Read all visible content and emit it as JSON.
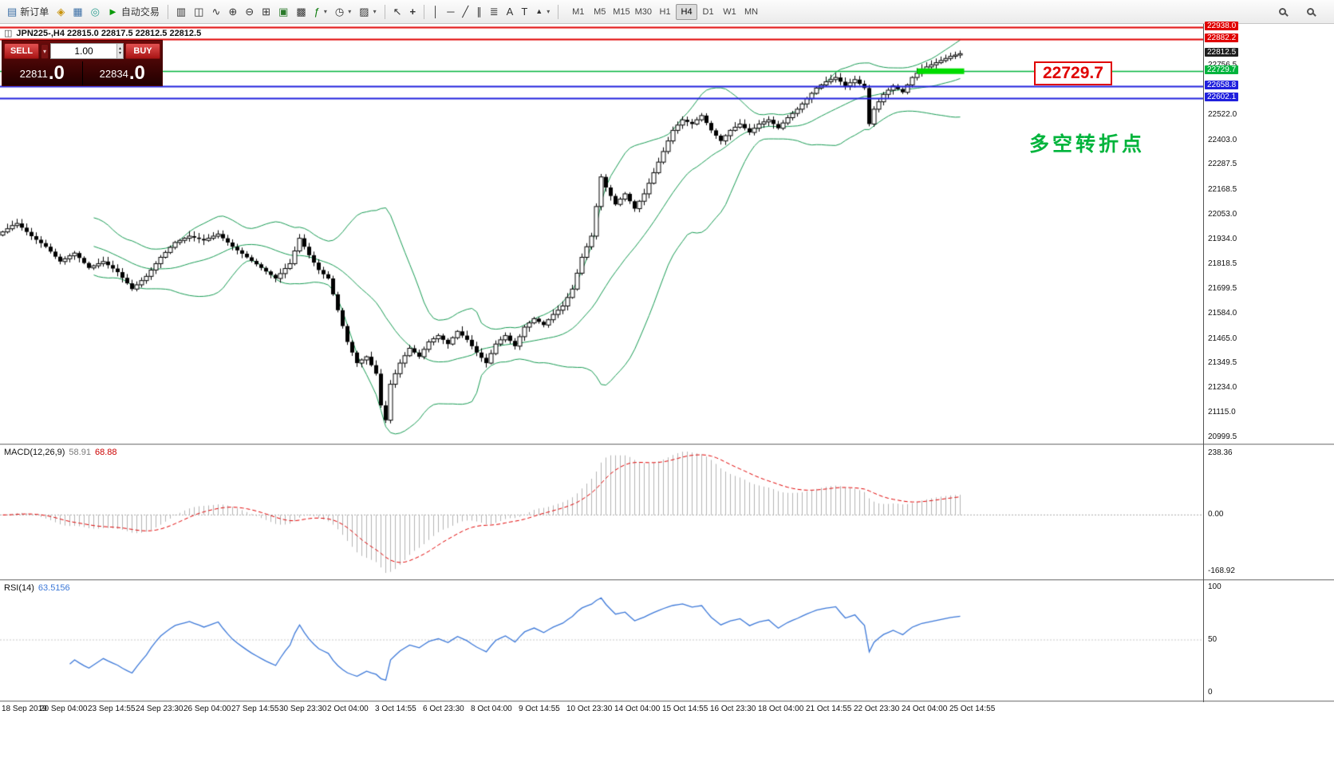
{
  "toolbar": {
    "new_order_label": "新订单",
    "autotrading_label": "自动交易",
    "timeframes": [
      "M1",
      "M5",
      "M15",
      "M30",
      "H1",
      "H4",
      "D1",
      "W1",
      "MN"
    ],
    "active_timeframe": "H4",
    "icons": {
      "new_order": "▤",
      "market": "◈",
      "terminal": "▦",
      "tester": "◎",
      "play": "►",
      "bars": "▥",
      "candles": "◫",
      "line_chart": "∿",
      "zoom_in": "⊕",
      "zoom_out": "⊖",
      "tile": "⊞",
      "window_a": "▣",
      "window_b": "▩",
      "indicators": "ƒ",
      "periods": "◷",
      "templates": "▨",
      "dropdown": "▾",
      "cursor": "↖",
      "crosshair": "+",
      "vline": "│",
      "hline": "─",
      "trendline": "╱",
      "channel": "∥",
      "fibonacci": "≣",
      "text": "A",
      "label": "T",
      "shapes": "▲"
    }
  },
  "chart": {
    "info": "JPN225-,H4  22815.0 22817.5 22812.5 22812.5",
    "annotation": "多空转折点",
    "callout": "22729.7",
    "levels": [
      {
        "price": 22938.0,
        "label": "22938.0",
        "color": "#e00000",
        "width": 2
      },
      {
        "price": 22882.2,
        "label": "22882.2",
        "color": "#e00000",
        "width": 2
      },
      {
        "price": 22812.5,
        "label": "22812.5",
        "color": "#1e1e1e",
        "width": 1,
        "current": true
      },
      {
        "price": 22729.7,
        "label": "22729.7",
        "color": "#00b43c",
        "width": 1.4
      },
      {
        "price": 22658.8,
        "label": "22658.8",
        "color": "#2020dd",
        "width": 2
      },
      {
        "price": 22602.1,
        "label": "22602.1",
        "color": "#2020dd",
        "width": 2
      }
    ],
    "highlight_segment": {
      "price": 22729.7,
      "from_candle": 191,
      "to_candle": 200,
      "color": "#00dc00"
    },
    "scale_labels": [
      "22756.5",
      "22522.0",
      "22403.0",
      "22287.5",
      "22168.5",
      "22053.0",
      "21934.0",
      "21818.5",
      "21699.5",
      "21584.0",
      "21465.0",
      "21349.5",
      "21234.0",
      "21115.0",
      "20999.5"
    ]
  },
  "trade_panel": {
    "sell_label": "SELL",
    "buy_label": "BUY",
    "lot": "1.00",
    "dropdown_glyph": "▾",
    "spinner_up": "▴",
    "spinner_down": "▾",
    "sell_price": "22811",
    "sell_pips": ".0",
    "buy_price": "22834",
    "buy_pips": ".0"
  },
  "macd_panel": {
    "title": "MACD(12,26,9)",
    "value_main": "58.91",
    "value_signal": "68.88",
    "scale": [
      "238.36",
      "0.00",
      "-168.92"
    ]
  },
  "rsi_panel": {
    "title": "RSI(14)",
    "value": "63.5156",
    "scale": [
      "100",
      "50",
      "0"
    ]
  },
  "time_axis": {
    "labels": [
      "18 Sep 2019",
      "20 Sep 04:00",
      "23 Sep 14:55",
      "24 Sep 23:30",
      "26 Sep 04:00",
      "27 Sep 14:55",
      "30 Sep 23:30",
      "2 Oct 04:00",
      "3 Oct 14:55",
      "6 Oct 23:30",
      "8 Oct 04:00",
      "9 Oct 14:55",
      "10 Oct 23:30",
      "14 Oct 04:00",
      "15 Oct 14:55",
      "16 Oct 23:30",
      "18 Oct 04:00",
      "21 Oct 14:55",
      "22 Oct 23:30",
      "24 Oct 04:00",
      "25 Oct 14:55"
    ]
  },
  "chart_data": {
    "type": "candlestick-with-indicators",
    "symbol": "JPN225-",
    "timeframe": "H4",
    "ohlc_readout": {
      "open": 22815.0,
      "high": 22817.5,
      "low": 22812.5,
      "close": 22812.5
    },
    "bid": 22811.0,
    "ask": 22834.0,
    "price_axis_range": [
      20999.5,
      22938.0
    ],
    "levels": [
      22938.0,
      22882.2,
      22729.7,
      22658.8,
      22602.1
    ],
    "indicators": [
      {
        "name": "Bollinger Bands",
        "period": 20,
        "deviation": 2
      },
      {
        "name": "MACD",
        "fast": 12,
        "slow": 26,
        "signal": 9,
        "values": [
          58.91,
          68.88
        ]
      },
      {
        "name": "RSI",
        "period": 14,
        "value": 63.5156
      }
    ],
    "closes": [
      21970,
      21985,
      22000,
      22010,
      21990,
      21970,
      21950,
      21933,
      21917,
      21900,
      21877,
      21853,
      21830,
      21843,
      21857,
      21870,
      21847,
      21823,
      21800,
      21810,
      21820,
      21830,
      21813,
      21797,
      21780,
      21753,
      21727,
      21700,
      21720,
      21740,
      21760,
      21790,
      21820,
      21850,
      21873,
      21897,
      21920,
      21930,
      21940,
      21950,
      21943,
      21937,
      21930,
      21940,
      21950,
      21960,
      21940,
      21920,
      21900,
      21883,
      21867,
      21850,
      21833,
      21817,
      21800,
      21783,
      21767,
      21750,
      21773,
      21797,
      21820,
      21880,
      21940,
      21900,
      21860,
      21825,
      21790,
      21770,
      21750,
      21675,
      21600,
      21525,
      21450,
      21400,
      21350,
      21365,
      21380,
      21340,
      21300,
      21150,
      21080,
      21250,
      21300,
      21350,
      21385,
      21420,
      21400,
      21380,
      21415,
      21450,
      21465,
      21480,
      21460,
      21440,
      21470,
      21500,
      21480,
      21460,
      21430,
      21400,
      21375,
      21350,
      21395,
      21440,
      21460,
      21480,
      21455,
      21430,
      21475,
      21520,
      21540,
      21560,
      21545,
      21530,
      21555,
      21580,
      21600,
      21620,
      21660,
      21700,
      21775,
      21850,
      21900,
      21950,
      22090,
      22230,
      22180,
      22140,
      22100,
      22125,
      22150,
      22115,
      22080,
      22115,
      22150,
      22200,
      22250,
      22300,
      22350,
      22400,
      22450,
      22475,
      22500,
      22490,
      22480,
      22500,
      22520,
      22485,
      22450,
      22425,
      22400,
      22425,
      22450,
      22465,
      22480,
      22460,
      22440,
      22460,
      22480,
      22490,
      22500,
      22480,
      22460,
      22485,
      22510,
      22530,
      22550,
      22575,
      22600,
      22625,
      22650,
      22665,
      22680,
      22690,
      22700,
      22680,
      22660,
      22675,
      22690,
      22670,
      22650,
      22480,
      22550,
      22585,
      22620,
      22640,
      22660,
      22645,
      22630,
      22665,
      22700,
      22720,
      22740,
      22750,
      22760,
      22770,
      22780,
      22790,
      22800,
      22806,
      22812.5
    ]
  }
}
